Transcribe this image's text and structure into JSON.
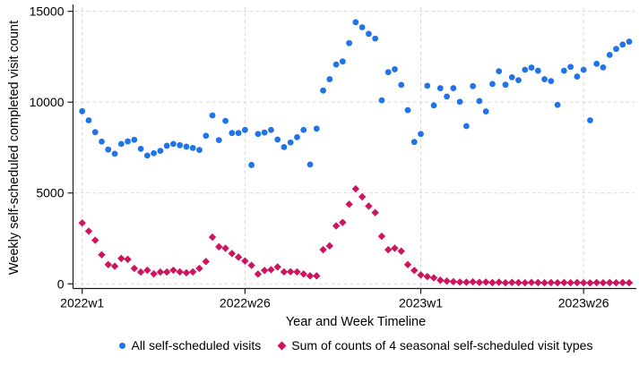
{
  "figure": {
    "y_axis_title": "Weekly self-scheduled completed visit count",
    "x_axis_title": "Year and Week Timeline",
    "legend": {
      "all_visits_label": "All self-scheduled visits",
      "seasonal_label": "Sum of counts of 4 seasonal self-scheduled visit types"
    },
    "colors": {
      "all_visits": "#2074e8",
      "seasonal": "#ce145e",
      "grid": "#d9d9d9",
      "axis": "#1a1a1a"
    }
  },
  "chart_data": {
    "type": "scatter",
    "title": "",
    "xlabel": "Year and Week Timeline",
    "ylabel": "Weekly self-scheduled completed visit count",
    "x_unit": "weeks since 2022w1 (weekly data, 2022w1 through 2023w33)",
    "x_tick_positions": [
      0,
      25,
      52,
      77
    ],
    "x_tick_labels": [
      "2022w1",
      "2022w26",
      "2023w1",
      "2023w26"
    ],
    "y_ticks": [
      0,
      5000,
      10000,
      15000
    ],
    "ylim": [
      0,
      15000
    ],
    "grid": true,
    "legend_position": "bottom",
    "series": [
      {
        "name": "All self-scheduled visits",
        "marker": "circle",
        "color": "#2074e8",
        "values": [
          9500,
          9000,
          8350,
          7830,
          7390,
          7160,
          7700,
          7840,
          7930,
          7430,
          7060,
          7190,
          7320,
          7600,
          7700,
          7630,
          7550,
          7480,
          7370,
          8150,
          9270,
          7910,
          8970,
          8300,
          8300,
          8470,
          6540,
          8250,
          8330,
          8470,
          7940,
          7530,
          7780,
          8070,
          8470,
          6570,
          8540,
          10640,
          11260,
          12070,
          12240,
          13250,
          14400,
          14120,
          13760,
          13500,
          10100,
          11650,
          11810,
          10950,
          9560,
          7810,
          8250,
          10900,
          9820,
          10770,
          10310,
          10770,
          10020,
          8680,
          10880,
          10060,
          9490,
          11000,
          11700,
          10960,
          11370,
          11210,
          11780,
          11900,
          11730,
          11260,
          11160,
          9850,
          11730,
          11940,
          11410,
          11780,
          9000,
          12110,
          11910,
          12600,
          12930,
          13170,
          13330
        ]
      },
      {
        "name": "Sum of counts of 4 seasonal self-scheduled visit types",
        "marker": "diamond",
        "color": "#ce145e",
        "values": [
          3350,
          2900,
          2400,
          1600,
          1060,
          970,
          1400,
          1350,
          850,
          650,
          750,
          550,
          650,
          650,
          750,
          660,
          610,
          660,
          850,
          1230,
          2570,
          2040,
          1960,
          1670,
          1470,
          1260,
          1020,
          540,
          740,
          780,
          930,
          660,
          670,
          660,
          540,
          440,
          440,
          1880,
          2090,
          3190,
          3380,
          4380,
          5230,
          4790,
          4280,
          3920,
          2620,
          1880,
          1960,
          1800,
          1060,
          740,
          490,
          400,
          330,
          200,
          150,
          120,
          100,
          90,
          110,
          80,
          100,
          70,
          90,
          60,
          80,
          70,
          60,
          80,
          70,
          60,
          70,
          60,
          70,
          60,
          70,
          60,
          50,
          70,
          60,
          70,
          60,
          70,
          60
        ]
      }
    ]
  }
}
